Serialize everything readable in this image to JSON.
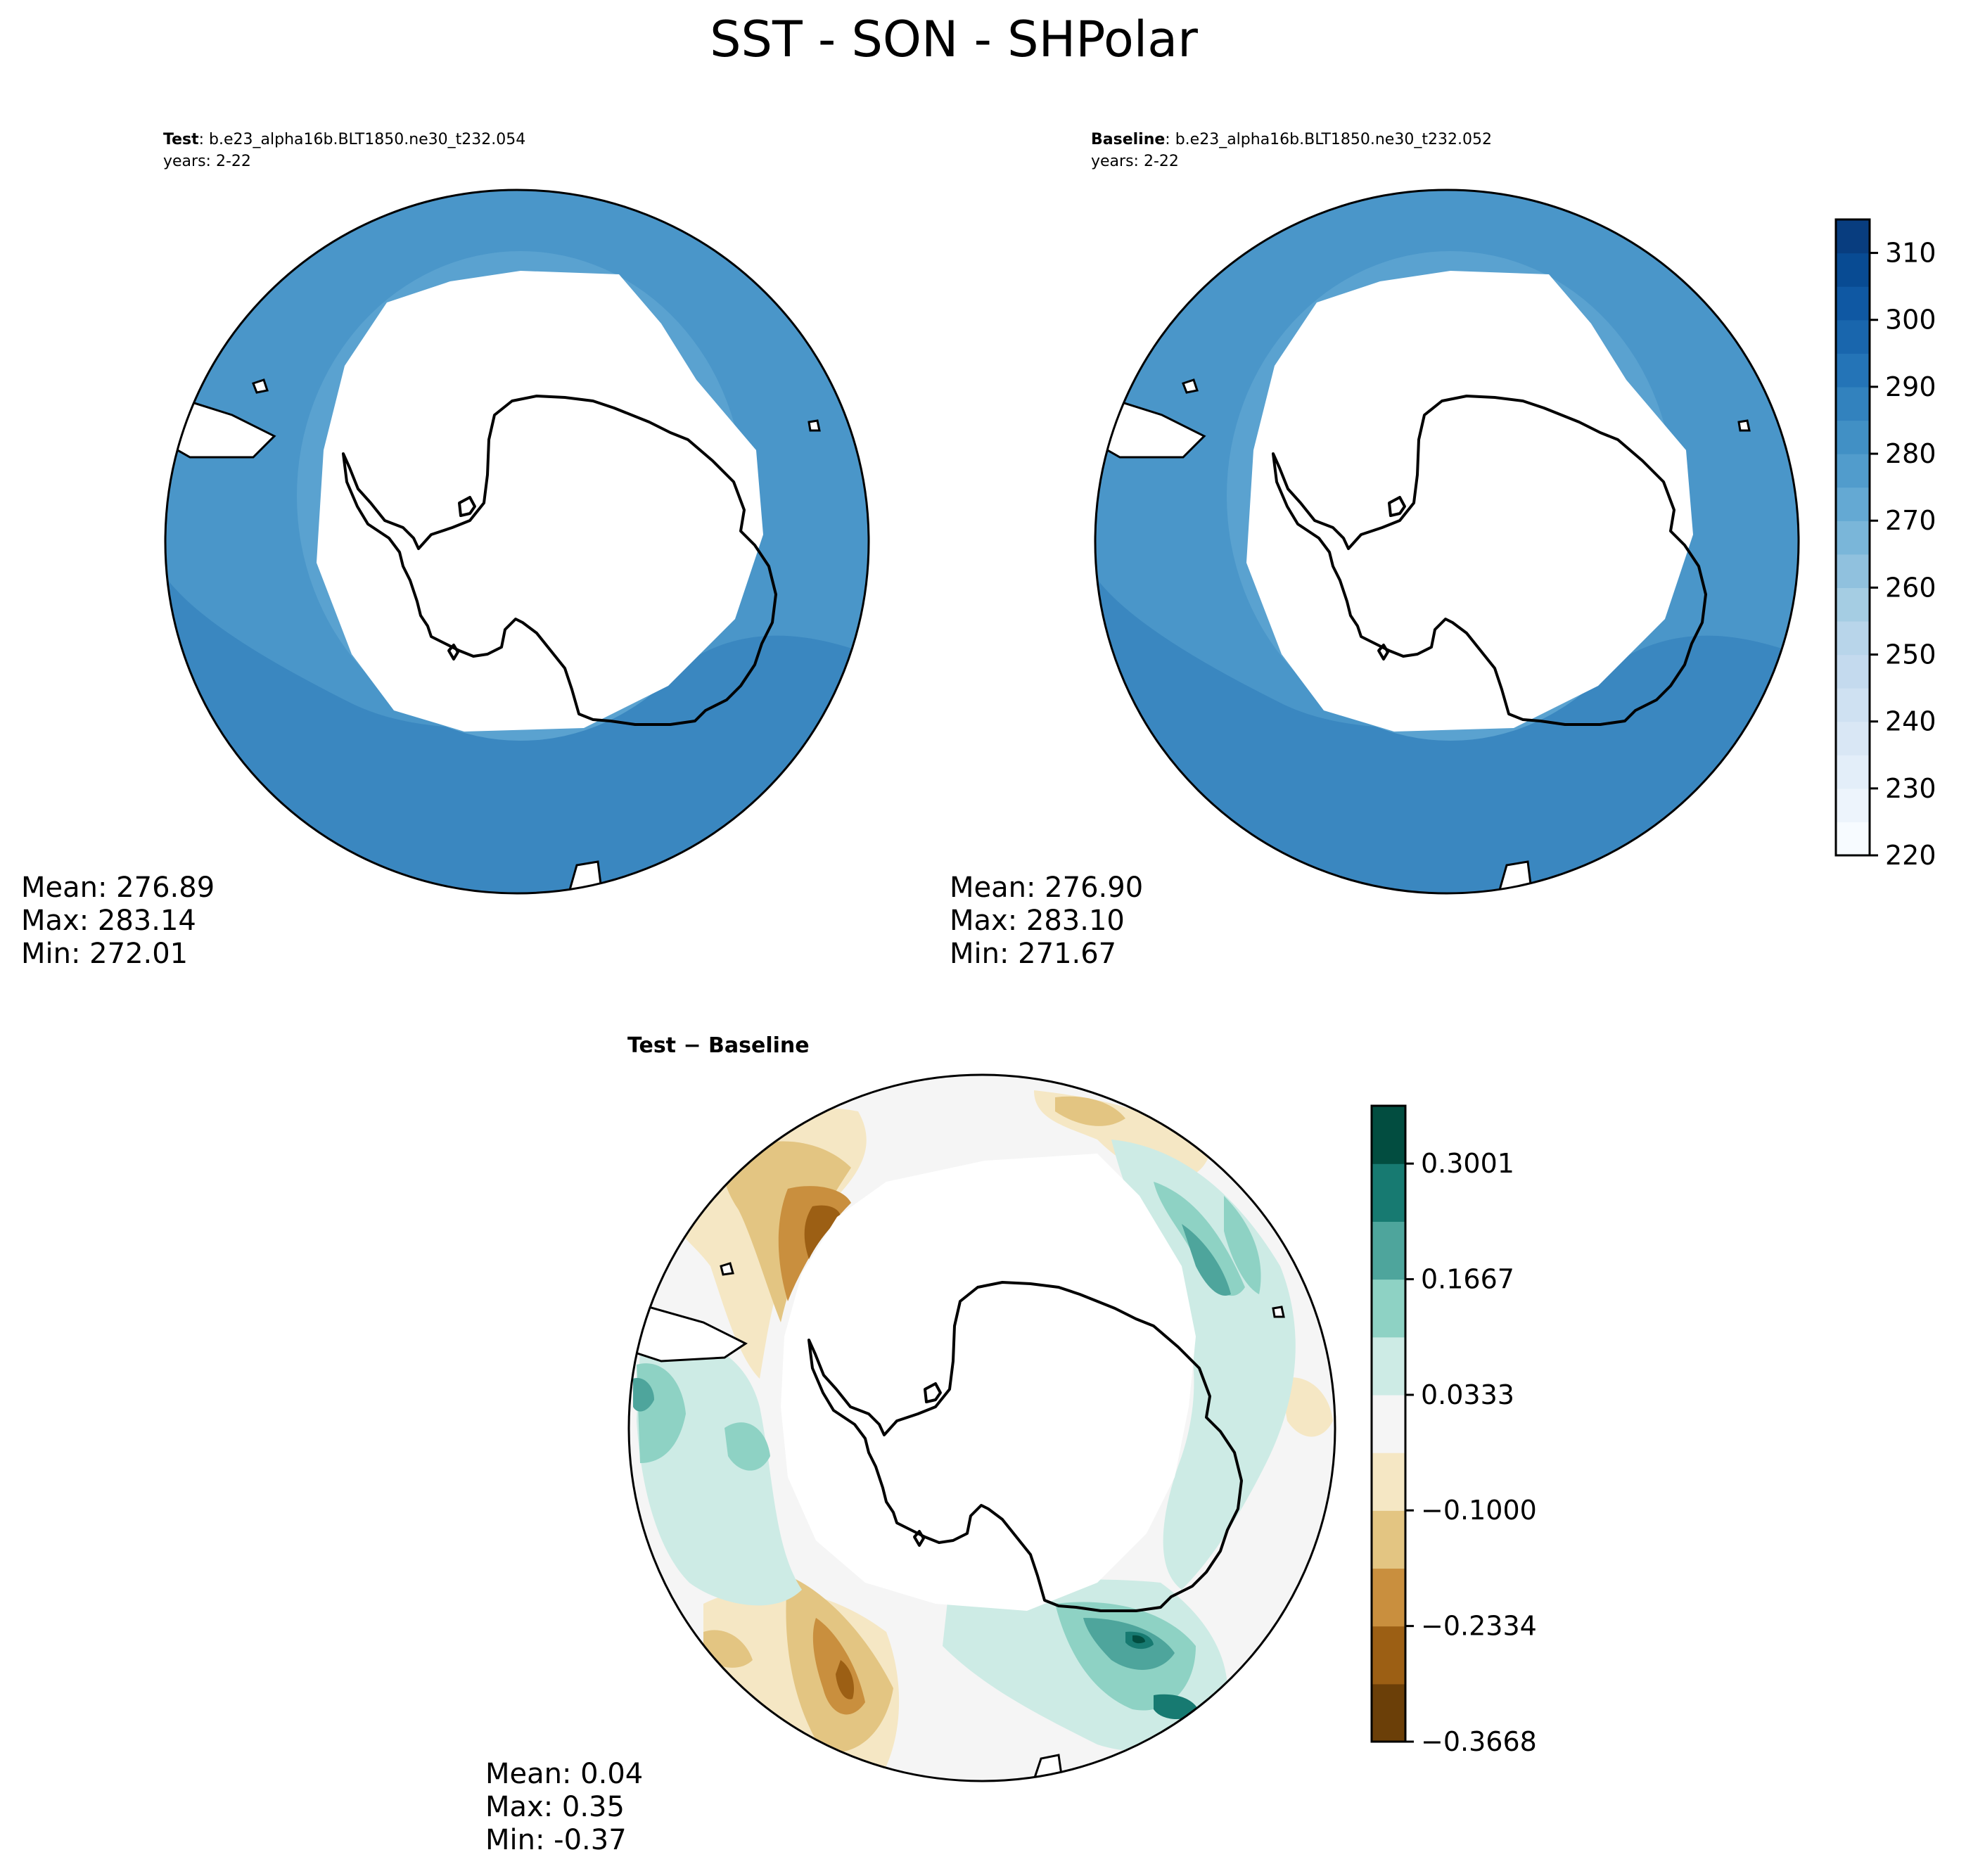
{
  "title": "SST - SON - SHPolar",
  "panels": {
    "test": {
      "label_bold": "Test",
      "label_rest": ": b.e23_alpha16b.BLT1850.ne30_t232.054",
      "years": "years: 2-22",
      "stats": {
        "mean": "Mean: 276.89",
        "max": "Max: 283.14",
        "min": "Min: 272.01"
      }
    },
    "baseline": {
      "label_bold": "Baseline",
      "label_rest": ": b.e23_alpha16b.BLT1850.ne30_t232.052",
      "years": "years: 2-22",
      "stats": {
        "mean": "Mean: 276.90",
        "max": "Max: 283.10",
        "min": "Min: 271.67"
      }
    },
    "diff": {
      "label": "Test − Baseline",
      "stats": {
        "mean": "Mean:  0.04",
        "max": "Max:  0.35",
        "min": "Min: -0.37"
      }
    }
  },
  "chart_data": [
    {
      "type": "heatmap",
      "name": "Test",
      "projection": "south-polar-stereographic",
      "mean": 276.89,
      "max": 283.14,
      "min": 272.01,
      "colorscale": "Blues",
      "levels": [
        220,
        225,
        230,
        235,
        240,
        245,
        250,
        255,
        260,
        265,
        270,
        275,
        280,
        285,
        290,
        295,
        300,
        305,
        310,
        315
      ],
      "shown_bands": [
        {
          "range": [
            270,
            275
          ],
          "color": "#5aa2d0"
        },
        {
          "range": [
            275,
            280
          ],
          "color": "#4a96c9"
        },
        {
          "range": [
            280,
            285
          ],
          "color": "#3a87c0"
        }
      ]
    },
    {
      "type": "heatmap",
      "name": "Baseline",
      "projection": "south-polar-stereographic",
      "mean": 276.9,
      "max": 283.1,
      "min": 271.67,
      "colorscale": "Blues",
      "levels": [
        220,
        225,
        230,
        235,
        240,
        245,
        250,
        255,
        260,
        265,
        270,
        275,
        280,
        285,
        290,
        295,
        300,
        305,
        310,
        315
      ],
      "shown_bands": [
        {
          "range": [
            270,
            275
          ],
          "color": "#5aa2d0"
        },
        {
          "range": [
            275,
            280
          ],
          "color": "#4a96c9"
        },
        {
          "range": [
            280,
            285
          ],
          "color": "#3a87c0"
        }
      ]
    },
    {
      "type": "heatmap",
      "name": "Test − Baseline",
      "projection": "south-polar-stereographic",
      "mean": 0.04,
      "max": 0.35,
      "min": -0.37,
      "colorscale": "BrBG",
      "levels": [
        -0.3668,
        -0.3001,
        -0.2334,
        -0.1667,
        -0.1,
        -0.0333,
        0.0333,
        0.1,
        0.1667,
        0.2334,
        0.3001,
        0.3668
      ],
      "tick_labels": [
        "−0.3668",
        "−0.2334",
        "−0.1000",
        "0.0333",
        "0.1667",
        "0.3001"
      ]
    }
  ],
  "colorbars": {
    "sst": {
      "ticks": [
        "220",
        "230",
        "240",
        "250",
        "260",
        "270",
        "280",
        "290",
        "300",
        "310"
      ],
      "tick_values": [
        220,
        230,
        240,
        250,
        260,
        270,
        280,
        290,
        300,
        310
      ],
      "range": [
        220,
        315
      ],
      "colors": [
        "#f7fbff",
        "#edf4fc",
        "#e3eef9",
        "#d9e7f5",
        "#cfe1f2",
        "#c4daee",
        "#b8d5ea",
        "#a5cde3",
        "#90c1de",
        "#7ab6d9",
        "#64a9d3",
        "#519ccc",
        "#4190c5",
        "#3282be",
        "#2474b7",
        "#1966ad",
        "#0f58a3",
        "#084b93",
        "#083d7f"
      ]
    },
    "diff": {
      "ticks": [
        "−0.3668",
        "−0.2334",
        "−0.1000",
        "0.0333",
        "0.1667",
        "0.3001"
      ],
      "tick_values": [
        -0.3668,
        -0.2334,
        -0.1,
        0.0333,
        0.1667,
        0.3001
      ],
      "range": [
        -0.3668,
        0.3668
      ],
      "colors": [
        "#6b3f08",
        "#9c5f14",
        "#c98f3e",
        "#e3c582",
        "#f5e7c4",
        "#f5f5f5",
        "#cdebe5",
        "#8ed2c4",
        "#4ea59c",
        "#177a71",
        "#024d40"
      ]
    }
  }
}
